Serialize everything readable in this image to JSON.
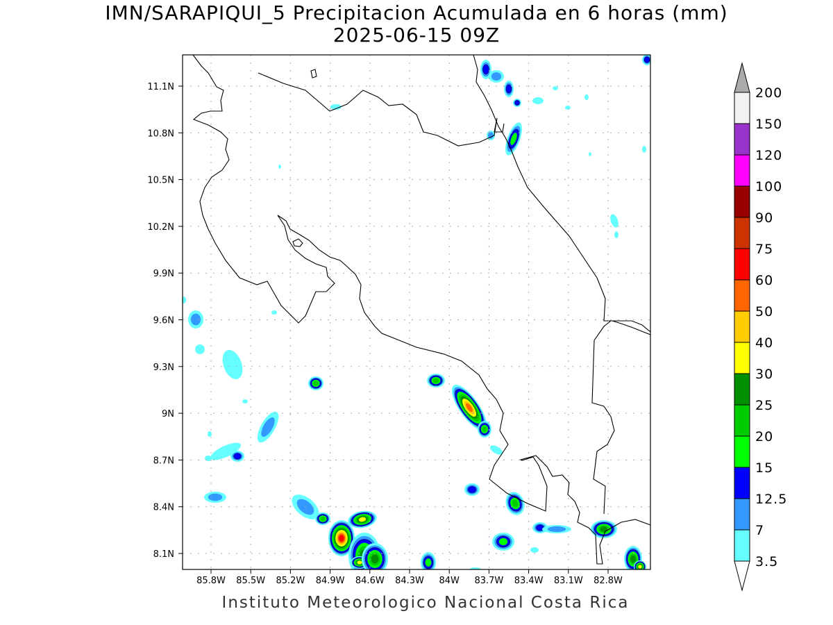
{
  "title": {
    "line1": "IMN/SARAPIQUI_5 Precipitacion Acumulada en 6 horas (mm)",
    "line2": "2025-06-15 09Z"
  },
  "credit": "Instituto Meteorologico Nacional Costa Rica",
  "map": {
    "lon_labels": [
      "85.8W",
      "85.5W",
      "85.2W",
      "84.9W",
      "84.6W",
      "84.3W",
      "84W",
      "83.7W",
      "83.4W",
      "83.1W",
      "82.8W"
    ],
    "lat_labels": [
      "11.1N",
      "10.8N",
      "10.5N",
      "10.2N",
      "9.9N",
      "9.6N",
      "9.3N",
      "9N",
      "8.7N",
      "8.4N",
      "8.1N"
    ],
    "lon_range": [
      -86.0,
      -82.5
    ],
    "lat_range": [
      8.0,
      11.3
    ]
  },
  "colorbar": {
    "labels": [
      "3.5",
      "7",
      "12.5",
      "15",
      "20",
      "25",
      "30",
      "40",
      "50",
      "60",
      "75",
      "90",
      "100",
      "120",
      "150",
      "200"
    ],
    "colors": [
      "#66ffff",
      "#3399ff",
      "#0000ff",
      "#00ff00",
      "#00cc00",
      "#009000",
      "#ffff00",
      "#ffcc00",
      "#ff6600",
      "#ff0000",
      "#cc3300",
      "#990000",
      "#ff00ff",
      "#9933cc",
      "#f2f2f2"
    ],
    "under_color": "#ffffff",
    "over_color": "#aaaaaa"
  }
}
